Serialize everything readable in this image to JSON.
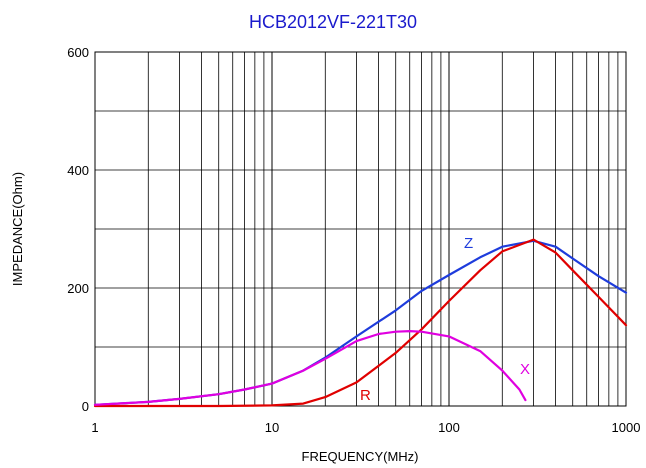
{
  "chart_data": {
    "type": "line",
    "title": "HCB2012VF-221T30",
    "xlabel": "FREQUENCY(MHz)",
    "ylabel": "IMPEDANCE(Ohm)",
    "xscale": "log",
    "xlim": [
      1,
      1000
    ],
    "ylim": [
      0,
      600
    ],
    "x_ticks": [
      "1",
      "10",
      "100",
      "1000"
    ],
    "y_ticks": [
      "0",
      "200",
      "400",
      "600"
    ],
    "grid": true,
    "legend": "none",
    "colors": {
      "title": "#1a1acc",
      "Z": "#1e3cdc",
      "R": "#e00000",
      "X": "#e000e0"
    },
    "series": [
      {
        "name": "Z",
        "x": [
          1,
          2,
          3,
          5,
          7,
          10,
          15,
          20,
          30,
          50,
          70,
          100,
          150,
          200,
          300,
          400,
          500,
          700,
          1000
        ],
        "y": [
          2,
          7,
          12,
          20,
          28,
          38,
          60,
          82,
          118,
          162,
          195,
          222,
          252,
          270,
          280,
          270,
          250,
          220,
          192
        ]
      },
      {
        "name": "R",
        "x": [
          1,
          3,
          5,
          10,
          15,
          20,
          30,
          50,
          70,
          100,
          150,
          200,
          300,
          400,
          500,
          700,
          1000
        ],
        "y": [
          0,
          0,
          0,
          1,
          4,
          15,
          40,
          90,
          130,
          178,
          230,
          262,
          282,
          260,
          230,
          185,
          137
        ]
      },
      {
        "name": "X",
        "x": [
          1,
          2,
          3,
          5,
          7,
          10,
          15,
          20,
          30,
          40,
          50,
          60,
          70,
          100,
          150,
          200,
          250,
          270
        ],
        "y": [
          2,
          7,
          12,
          20,
          28,
          38,
          60,
          80,
          110,
          122,
          126,
          127,
          126,
          118,
          93,
          60,
          28,
          10
        ]
      }
    ]
  }
}
